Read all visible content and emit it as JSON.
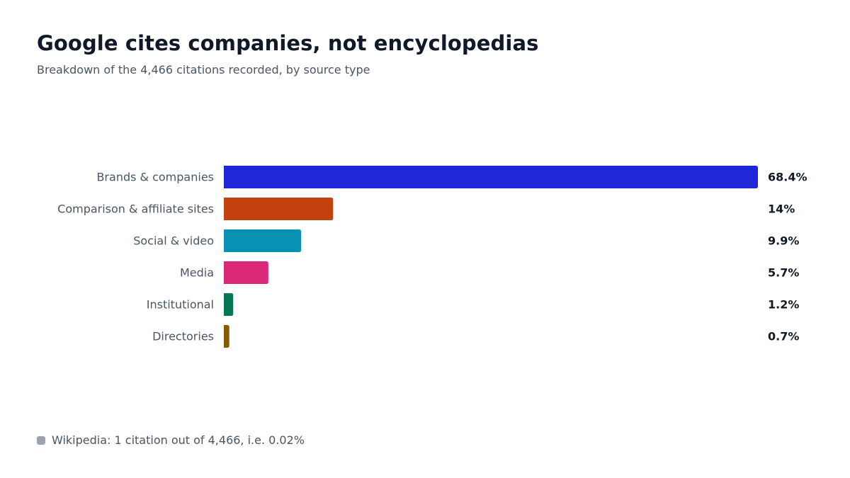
{
  "title": "Google cites companies, not encyclopedias",
  "subtitle": "Breakdown of the 4,466 citations recorded, by source type",
  "chart_data": {
    "type": "bar",
    "orientation": "horizontal",
    "title": "Google cites companies, not encyclopedias",
    "subtitle": "Breakdown of the 4,466 citations recorded, by source type",
    "xlabel": "",
    "ylabel": "",
    "xlim": [
      0,
      68.4
    ],
    "grid": false,
    "unit": "%",
    "categories": [
      "Brands & companies",
      "Comparison & affiliate sites",
      "Social & video",
      "Media",
      "Institutional",
      "Directories"
    ],
    "values": [
      68.4,
      14,
      9.9,
      5.7,
      1.2,
      0.7
    ],
    "value_labels": [
      "68.4%",
      "14%",
      "9.9%",
      "5.7%",
      "1.2%",
      "0.7%"
    ],
    "colors": [
      "#1f28d9",
      "#c2410c",
      "#0891b2",
      "#db2777",
      "#047857",
      "#8a5a00"
    ]
  },
  "footnote": {
    "text": "Wikipedia: 1 citation out of 4,466, i.e. 0.02%",
    "color": "#9ca3af"
  }
}
